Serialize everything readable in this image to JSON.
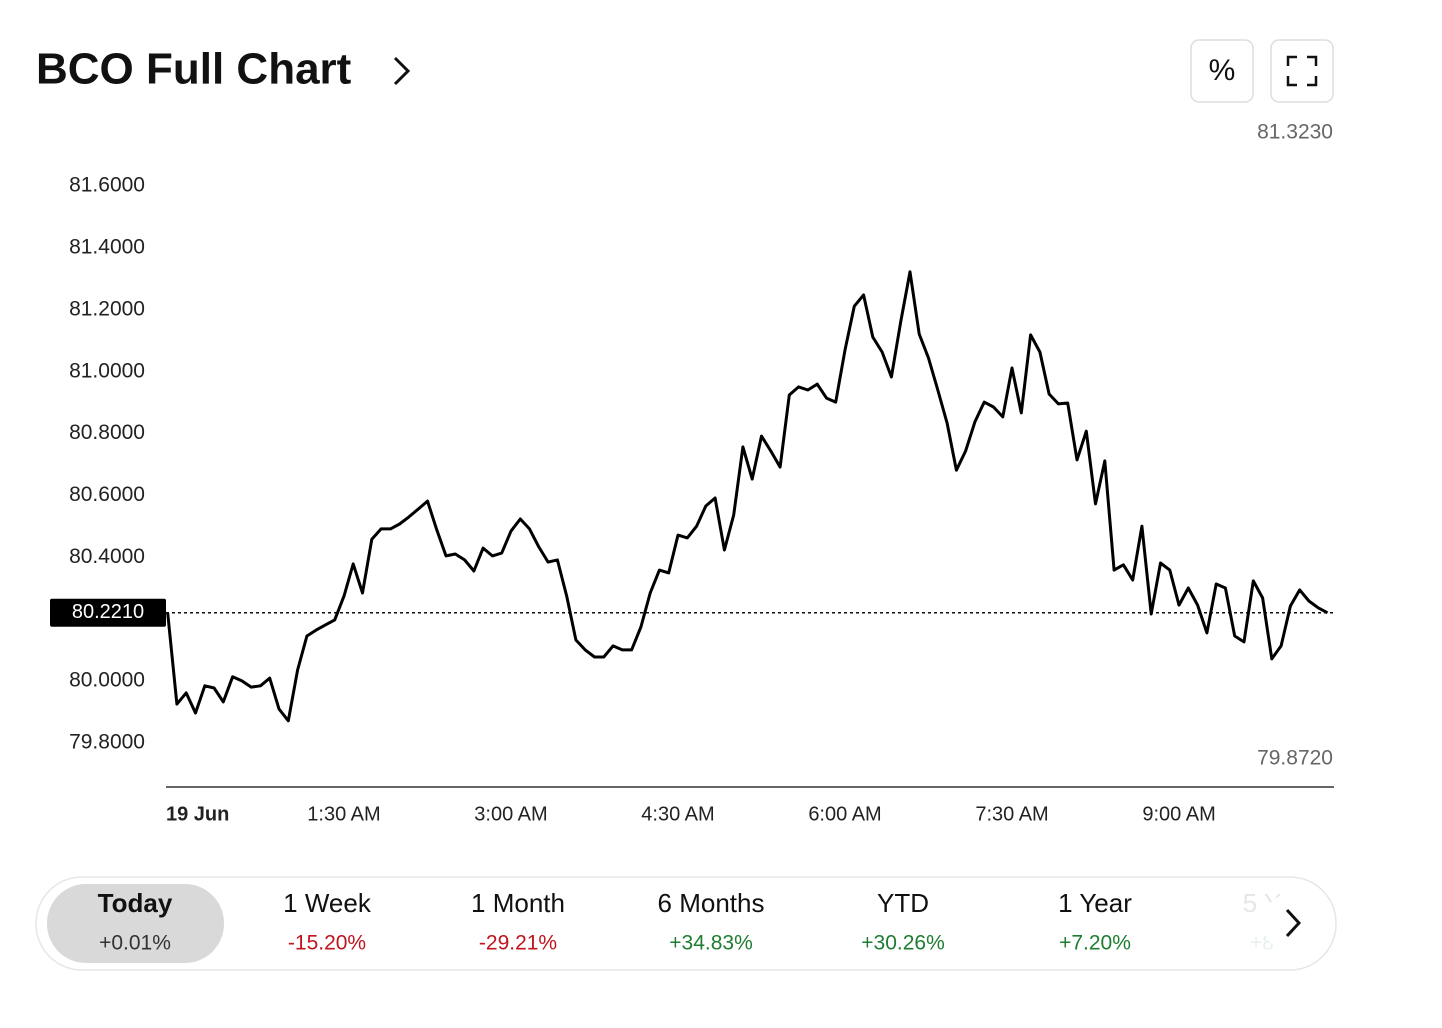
{
  "header": {
    "title": "BCO Full Chart",
    "percent_button": "%"
  },
  "chart_data": {
    "type": "line",
    "color": "#000000",
    "x": [
      -5,
      0,
      5,
      10,
      15,
      20,
      25,
      30,
      35,
      40,
      45,
      50,
      55,
      60,
      65,
      70,
      75,
      80,
      85,
      90,
      95,
      100,
      105,
      110,
      115,
      120,
      125,
      130,
      135,
      140,
      145,
      150,
      155,
      160,
      165,
      170,
      175,
      180,
      185,
      190,
      195,
      200,
      205,
      210,
      215,
      220,
      225,
      230,
      235,
      240,
      245,
      250,
      255,
      260,
      265,
      270,
      275,
      280,
      285,
      290,
      295,
      300,
      305,
      310,
      315,
      320,
      325,
      330,
      335,
      340,
      345,
      350,
      355,
      360,
      365,
      370,
      375,
      380,
      385,
      390,
      395,
      400,
      405,
      410,
      415,
      420,
      425,
      430,
      435,
      440,
      445,
      450,
      455,
      460,
      465,
      470,
      475,
      480,
      485,
      490,
      495,
      500,
      505,
      510,
      515,
      520,
      525,
      530,
      535,
      540,
      545,
      550,
      555,
      560,
      565,
      570,
      575,
      580,
      585,
      590,
      595,
      600,
      605,
      610,
      615,
      620
    ],
    "values": [
      80.22,
      79.926,
      79.962,
      79.897,
      79.985,
      79.978,
      79.933,
      80.014,
      80.001,
      79.981,
      79.985,
      80.01,
      79.91,
      79.872,
      80.036,
      80.146,
      80.165,
      80.182,
      80.198,
      80.275,
      80.379,
      80.285,
      80.459,
      80.492,
      80.492,
      80.508,
      80.531,
      80.556,
      80.582,
      80.489,
      80.405,
      80.411,
      80.392,
      80.356,
      80.43,
      80.405,
      80.414,
      80.485,
      80.524,
      80.492,
      80.434,
      80.385,
      80.392,
      80.275,
      80.133,
      80.101,
      80.078,
      80.078,
      80.114,
      80.101,
      80.101,
      80.175,
      80.285,
      80.359,
      80.35,
      80.472,
      80.463,
      80.501,
      80.566,
      80.592,
      80.424,
      80.537,
      80.757,
      80.653,
      80.792,
      80.744,
      80.692,
      80.925,
      80.951,
      80.941,
      80.96,
      80.915,
      80.902,
      81.07,
      81.212,
      81.248,
      81.112,
      81.064,
      80.983,
      81.161,
      81.323,
      81.122,
      81.044,
      80.941,
      80.834,
      80.682,
      80.744,
      80.838,
      80.902,
      80.886,
      80.854,
      81.012,
      80.867,
      81.119,
      81.064,
      80.928,
      80.896,
      80.899,
      80.715,
      80.808,
      80.573,
      80.712,
      80.359,
      80.376,
      80.327,
      80.501,
      80.217,
      80.382,
      80.359,
      80.246,
      80.301,
      80.246,
      80.156,
      80.314,
      80.301,
      80.146,
      80.127,
      80.324,
      80.269,
      80.072,
      80.114,
      80.243,
      80.295,
      80.259,
      80.237,
      80.221
    ],
    "xlim": [
      -5.9,
      623.5
    ],
    "xticks": [
      {
        "value": 0,
        "label": "19 Jun"
      },
      {
        "value": 90,
        "label": "1:30 AM"
      },
      {
        "value": 180,
        "label": "3:00 AM"
      },
      {
        "value": 270,
        "label": "4:30 AM"
      },
      {
        "value": 360,
        "label": "6:00 AM"
      },
      {
        "value": 450,
        "label": "7:30 AM"
      },
      {
        "value": 540,
        "label": "9:00 AM"
      }
    ],
    "ylim": [
      79.658,
      81.749
    ],
    "yticks": [
      {
        "value": 81.6,
        "label": "81.6000"
      },
      {
        "value": 81.4,
        "label": "81.4000"
      },
      {
        "value": 81.2,
        "label": "81.2000"
      },
      {
        "value": 81.0,
        "label": "81.0000"
      },
      {
        "value": 80.8,
        "label": "80.8000"
      },
      {
        "value": 80.6,
        "label": "80.6000"
      },
      {
        "value": 80.4,
        "label": "80.4000"
      },
      {
        "value": 80.0,
        "label": "80.0000"
      },
      {
        "value": 79.8,
        "label": "79.8000"
      }
    ],
    "reference_line": {
      "value": 80.221,
      "label": "80.2210"
    },
    "high_label": "81.3230",
    "low_label": "79.8720",
    "grid": false
  },
  "tabs": [
    {
      "label": "Today",
      "change": "+0.01%",
      "color": "#333333"
    },
    {
      "label": "1 Week",
      "change": "-15.20%",
      "color": "#c0141e"
    },
    {
      "label": "1 Month",
      "change": "-29.21%",
      "color": "#c0141e"
    },
    {
      "label": "6 Months",
      "change": "+34.83%",
      "color": "#1e7d32"
    },
    {
      "label": "YTD",
      "change": "+30.26%",
      "color": "#1e7d32"
    },
    {
      "label": "1 Year",
      "change": "+7.20%",
      "color": "#1e7d32"
    },
    {
      "label": "5 Y",
      "change": "+8",
      "color": "#1e7d32"
    }
  ]
}
